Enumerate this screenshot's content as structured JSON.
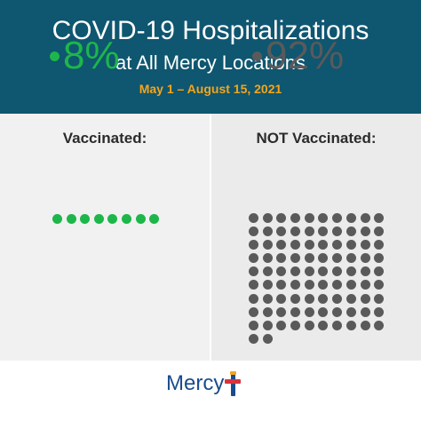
{
  "header": {
    "title_line1": "COVID-19 Hospitalizations",
    "title_line2": "at All Mercy Locations",
    "date_range": "May 1 – August 15, 2021"
  },
  "vaccinated": {
    "label": "Vaccinated:",
    "percent": "8%",
    "dot_count": 8,
    "color": "#1db64a"
  },
  "not_vaccinated": {
    "label": "NOT Vaccinated:",
    "percent": "92%",
    "dot_count": 92,
    "color": "#5a5a5a"
  },
  "colors": {
    "header_bg": "#0f5670",
    "date_accent": "#f4a51c",
    "brand_blue": "#1a4c8c",
    "brand_red": "#d9333c"
  },
  "footer": {
    "logo_text": "Mercy",
    "logo_icon": "mercy-cross-icon"
  }
}
